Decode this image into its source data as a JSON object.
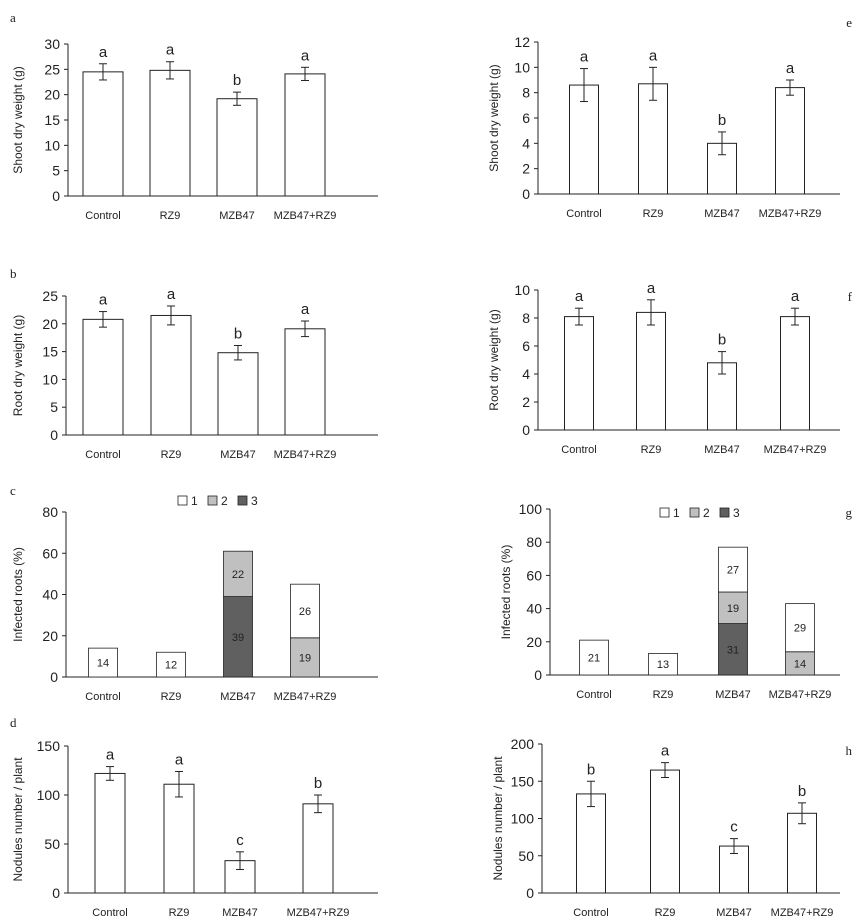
{
  "chart_data": [
    {
      "panel": "a",
      "type": "bar",
      "categories": [
        "Control",
        "RZ9",
        "MZB47",
        "MZB47+RZ9"
      ],
      "values": [
        24.5,
        24.8,
        19.2,
        24.1
      ],
      "errors": [
        1.6,
        1.7,
        1.3,
        1.3
      ],
      "significance": [
        "a",
        "a",
        "b",
        "a"
      ],
      "ylabel": "Shoot dry weight (g)",
      "ylim": [
        0,
        30
      ],
      "yticks": [
        0,
        5,
        10,
        15,
        20,
        25,
        30
      ]
    },
    {
      "panel": "b",
      "type": "bar",
      "categories": [
        "Control",
        "RZ9",
        "MZB47",
        "MZB47+RZ9"
      ],
      "values": [
        20.8,
        21.5,
        14.8,
        19.1
      ],
      "errors": [
        1.4,
        1.7,
        1.3,
        1.4
      ],
      "significance": [
        "a",
        "a",
        "b",
        "a"
      ],
      "ylabel": "Root dry weight (g)",
      "ylim": [
        0,
        25
      ],
      "yticks": [
        0,
        5,
        10,
        15,
        20,
        25
      ]
    },
    {
      "panel": "c",
      "type": "bar",
      "stacked": true,
      "categories": [
        "Control",
        "RZ9",
        "MZB47",
        "MZB47+RZ9"
      ],
      "legend": [
        "1",
        "2",
        "3"
      ],
      "series": [
        {
          "name": "3",
          "color": "#606060",
          "values": [
            0,
            0,
            39,
            0
          ]
        },
        {
          "name": "2",
          "color": "#c0c0c0",
          "values": [
            0,
            0,
            22,
            19
          ]
        },
        {
          "name": "1",
          "color": "#ffffff",
          "values": [
            14,
            12,
            0,
            26
          ]
        }
      ],
      "ylabel": "Infected roots (%)",
      "ylim": [
        0,
        80
      ],
      "yticks": [
        0,
        20,
        40,
        60,
        80
      ]
    },
    {
      "panel": "d",
      "type": "bar",
      "categories": [
        "Control",
        "RZ9",
        "MZB47",
        "MZB47+RZ9"
      ],
      "values": [
        122,
        111,
        33,
        91
      ],
      "errors": [
        7,
        13,
        9,
        9
      ],
      "significance": [
        "a",
        "a",
        "c",
        "b"
      ],
      "ylabel": "Nodules number / plant",
      "ylim": [
        0,
        150
      ],
      "yticks": [
        0,
        50,
        100,
        150
      ]
    },
    {
      "panel": "e",
      "type": "bar",
      "categories": [
        "Control",
        "RZ9",
        "MZB47",
        "MZB47+RZ9"
      ],
      "values": [
        8.6,
        8.7,
        4.0,
        8.4
      ],
      "errors": [
        1.3,
        1.3,
        0.9,
        0.6
      ],
      "significance": [
        "a",
        "a",
        "b",
        "a"
      ],
      "ylabel": "Shoot dry weight (g)",
      "ylim": [
        0,
        12
      ],
      "yticks": [
        0,
        2,
        4,
        6,
        8,
        10,
        12
      ]
    },
    {
      "panel": "f",
      "type": "bar",
      "categories": [
        "Control",
        "RZ9",
        "MZB47",
        "MZB47+RZ9"
      ],
      "values": [
        8.1,
        8.4,
        4.8,
        8.1
      ],
      "errors": [
        0.6,
        0.9,
        0.8,
        0.6
      ],
      "significance": [
        "a",
        "a",
        "b",
        "a"
      ],
      "ylabel": "Root dry weight (g)",
      "ylim": [
        0,
        10
      ],
      "yticks": [
        0,
        2,
        4,
        6,
        8,
        10
      ]
    },
    {
      "panel": "g",
      "type": "bar",
      "stacked": true,
      "categories": [
        "Control",
        "RZ9",
        "MZB47",
        "MZB47+RZ9"
      ],
      "legend": [
        "1",
        "2",
        "3"
      ],
      "series": [
        {
          "name": "3",
          "color": "#606060",
          "values": [
            0,
            0,
            31,
            0
          ]
        },
        {
          "name": "2",
          "color": "#c0c0c0",
          "values": [
            0,
            0,
            19,
            14
          ]
        },
        {
          "name": "1",
          "color": "#ffffff",
          "values": [
            21,
            13,
            27,
            29
          ]
        }
      ],
      "ylabel": "Infected roots (%)",
      "ylim": [
        0,
        100
      ],
      "yticks": [
        0,
        20,
        40,
        60,
        80,
        100
      ]
    },
    {
      "panel": "h",
      "type": "bar",
      "categories": [
        "Control",
        "RZ9",
        "MZB47",
        "MZB47+RZ9"
      ],
      "values": [
        133,
        165,
        63,
        107
      ],
      "errors": [
        17,
        10,
        10,
        14
      ],
      "significance": [
        "b",
        "a",
        "c",
        "b"
      ],
      "ylabel": "Nodules number / plant",
      "ylim": [
        0,
        200
      ],
      "yticks": [
        0,
        50,
        100,
        150,
        200
      ]
    }
  ]
}
